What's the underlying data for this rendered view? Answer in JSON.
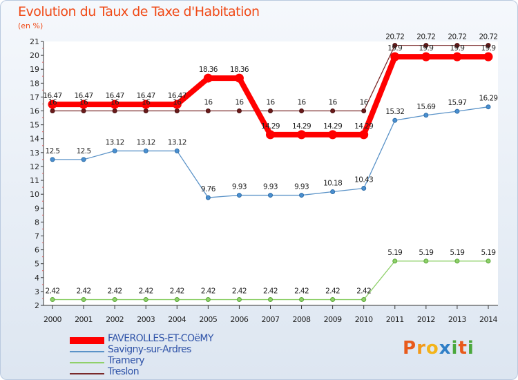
{
  "title": "Evolution du Taux de Taxe d'Habitation",
  "unit_label": "(en %)",
  "logo": {
    "letters": [
      "P",
      "r",
      "o",
      "x",
      "i",
      "t",
      "i"
    ],
    "colors": [
      "#e85a1b",
      "#f29a1a",
      "#f3b41a",
      "#2f7fc7",
      "#4aa83c",
      "#e85a1b",
      "#4aa83c"
    ]
  },
  "chart_data": {
    "type": "line",
    "title": "Evolution du Taux de Taxe d'Habitation",
    "ylabel": "(en %)",
    "xlabel": "",
    "ylim": [
      2,
      21
    ],
    "grid": false,
    "x": [
      "2000",
      "2001",
      "2002",
      "2003",
      "2004",
      "2005",
      "2006",
      "2007",
      "2008",
      "2009",
      "2010",
      "2011",
      "2012",
      "2013",
      "2014"
    ],
    "yticks": [
      "2",
      "3",
      "4",
      "5",
      "6",
      "7",
      "8",
      "9",
      "10",
      "11",
      "12",
      "13",
      "14",
      "15",
      "16",
      "17",
      "18",
      "19",
      "20",
      "21"
    ],
    "series": [
      {
        "name": "FAVEROLLES-ET-COëMY",
        "color": "#ff0000",
        "values": [
          16.47,
          16.47,
          16.47,
          16.47,
          16.47,
          18.36,
          18.36,
          14.29,
          14.29,
          14.29,
          14.29,
          19.9,
          19.9,
          19.9,
          19.9
        ],
        "labels": [
          "16.47",
          "16.47",
          "16.47",
          "16.47",
          "16.47",
          "18.36",
          "18.36",
          "14.29",
          "14.29",
          "14.29",
          "14.29",
          "19.9",
          "19.9",
          "19.9",
          "19.9"
        ]
      },
      {
        "name": "Savigny-sur-Ardres",
        "color": "#5b93c8",
        "values": [
          12.5,
          12.5,
          13.12,
          13.12,
          13.12,
          9.76,
          9.93,
          9.93,
          9.93,
          10.18,
          10.43,
          15.32,
          15.69,
          15.97,
          16.29
        ],
        "labels": [
          "12.5",
          "12.5",
          "13.12",
          "13.12",
          "13.12",
          "9.76",
          "9.93",
          "9.93",
          "9.93",
          "10.18",
          "10.43",
          "15.32",
          "15.69",
          "15.97",
          "16.29"
        ]
      },
      {
        "name": "Tramery",
        "color": "#8fd06a",
        "values": [
          2.42,
          2.42,
          2.42,
          2.42,
          2.42,
          2.42,
          2.42,
          2.42,
          2.42,
          2.42,
          2.42,
          5.19,
          5.19,
          5.19,
          5.19
        ],
        "labels": [
          "2.42",
          "2.42",
          "2.42",
          "2.42",
          "2.42",
          "2.42",
          "2.42",
          "2.42",
          "2.42",
          "2.42",
          "2.42",
          "5.19",
          "5.19",
          "5.19",
          "5.19"
        ]
      },
      {
        "name": "Treslon",
        "color": "#7a2a2a",
        "values": [
          16,
          16,
          16,
          16,
          16,
          16,
          16,
          16,
          16,
          16,
          16,
          20.72,
          20.72,
          20.72,
          20.72
        ],
        "labels": [
          "16",
          "16",
          "16",
          "16",
          "16",
          "16",
          "16",
          "16",
          "16",
          "16",
          "16",
          "20.72",
          "20.72",
          "20.72",
          "20.72"
        ]
      }
    ]
  }
}
